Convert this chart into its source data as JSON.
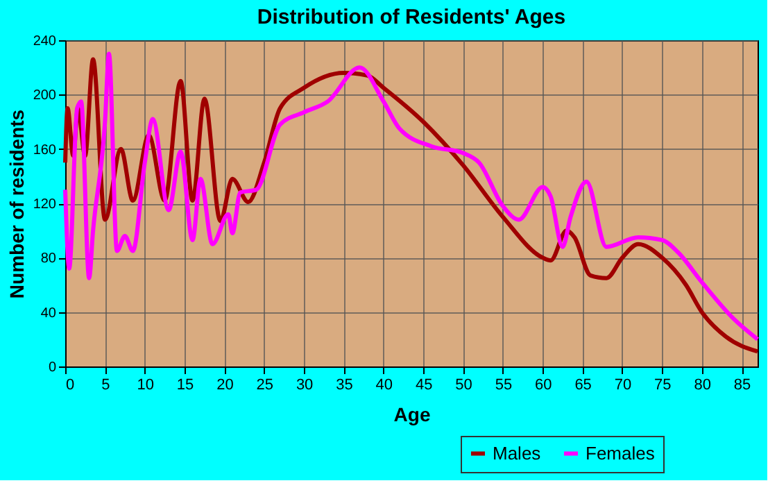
{
  "chart_data": {
    "type": "line",
    "title": "Distribution of Residents' Ages",
    "xlabel": "Age",
    "ylabel": "Number of residents",
    "xlim": [
      0,
      87
    ],
    "xticks": [
      0,
      5,
      10,
      15,
      20,
      25,
      30,
      35,
      40,
      45,
      50,
      55,
      60,
      65,
      70,
      75,
      80,
      85
    ],
    "ylim": [
      0,
      240
    ],
    "yticks": [
      0,
      40,
      80,
      120,
      160,
      200,
      240
    ],
    "grid": true,
    "legend": "bottom right",
    "line_style": "solid",
    "series": [
      {
        "name": "Males",
        "color": "#a00000",
        "x": [
          0,
          0.3,
          1,
          1.6,
          2.5,
          3.5,
          5,
          7,
          8.5,
          10.5,
          12.5,
          14.5,
          16,
          17.5,
          19.5,
          21,
          23,
          25,
          27,
          30,
          35,
          38,
          40,
          45,
          50,
          55,
          60,
          61,
          63,
          64,
          66,
          68,
          70,
          72,
          75,
          78,
          80,
          83,
          87
        ],
        "values": [
          150,
          190,
          155,
          190,
          155,
          226,
          108,
          160,
          122,
          170,
          122,
          210,
          122,
          197,
          107,
          138,
          121,
          150,
          190,
          205,
          216,
          214,
          205,
          180,
          148,
          110,
          80,
          78,
          100,
          95,
          67,
          65,
          80,
          90,
          80,
          60,
          40,
          22,
          11
        ]
      },
      {
        "name": "Females",
        "color": "#ff00ff",
        "x": [
          0,
          0.5,
          1.5,
          2,
          3,
          3.5,
          5,
          5.5,
          6.5,
          7.5,
          8.5,
          10,
          11,
          13,
          14.5,
          16,
          17,
          18.5,
          20.5,
          21,
          22,
          24,
          27,
          30,
          33,
          37,
          40,
          42,
          46,
          50,
          52,
          55,
          57,
          60,
          61,
          62.5,
          63.5,
          65.5,
          68,
          72,
          75,
          77,
          80,
          84,
          87
        ],
        "values": [
          130,
          72,
          190,
          195,
          65,
          100,
          180,
          230,
          85,
          96,
          85,
          150,
          182,
          115,
          158,
          93,
          138,
          90,
          112,
          98,
          128,
          130,
          178,
          187,
          195,
          220,
          195,
          175,
          162,
          157,
          150,
          118,
          108,
          132,
          125,
          88,
          110,
          136,
          88,
          95,
          93,
          84,
          62,
          35,
          20
        ]
      }
    ]
  }
}
